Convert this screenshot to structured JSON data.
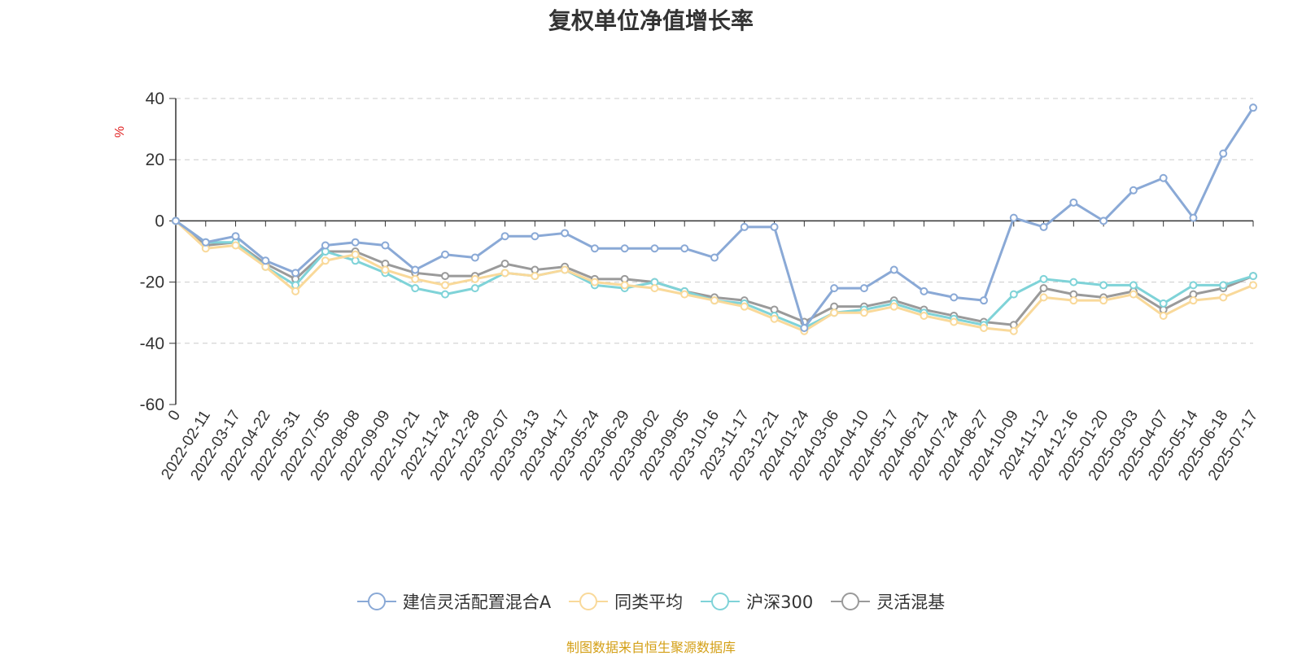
{
  "title": "复权单位净值增长率",
  "source": "制图数据来自恒生聚源数据库",
  "chart_data": {
    "type": "line",
    "ylabel": "%",
    "ylim": [
      -60,
      40
    ],
    "yticks": [
      40,
      20,
      0,
      -20,
      -40,
      -60
    ],
    "grid": true,
    "legend_position": "bottom",
    "x_tick_labels": [
      "0",
      "2022-02-11",
      "2022-03-17",
      "2022-04-22",
      "2022-05-31",
      "2022-07-05",
      "2022-08-08",
      "2022-09-09",
      "2022-10-21",
      "2022-11-24",
      "2022-12-28",
      "2023-02-07",
      "2023-03-13",
      "2023-04-17",
      "2023-05-24",
      "2023-06-29",
      "2023-08-02",
      "2023-09-05",
      "2023-10-16",
      "2023-11-17",
      "2023-12-21",
      "2024-01-24",
      "2024-03-06",
      "2024-04-10",
      "2024-05-17",
      "2024-06-21",
      "2024-07-24",
      "2024-08-27",
      "2024-10-09",
      "2024-11-12",
      "2024-12-16",
      "2025-01-20",
      "2025-03-03",
      "2025-04-07",
      "2025-05-14",
      "2025-06-18",
      "2025-07-17"
    ],
    "x": [
      "0",
      "2022-02-11",
      "2022-03-17",
      "2022-04-22",
      "2022-05-31",
      "2022-07-05",
      "2022-08-08",
      "2022-09-09",
      "2022-10-21",
      "2022-11-24",
      "2022-12-28",
      "2023-02-07",
      "2023-03-13",
      "2023-04-17",
      "2023-05-24",
      "2023-06-29",
      "2023-08-02",
      "2023-09-05",
      "2023-10-16",
      "2023-11-17",
      "2023-12-21",
      "2024-01-24",
      "2024-03-06",
      "2024-04-10",
      "2024-05-17",
      "2024-06-21",
      "2024-07-24",
      "2024-08-27",
      "2024-10-09",
      "2024-11-12",
      "2024-12-16",
      "2025-01-20",
      "2025-03-03",
      "2025-04-07",
      "2025-05-14",
      "2025-06-18",
      "2025-07-17"
    ],
    "series": [
      {
        "name": "建信灵活配置混合A",
        "color": "#8aa9d6",
        "values": [
          0,
          -7,
          -5,
          -13,
          -17,
          -8,
          -7,
          -8,
          -16,
          -11,
          -12,
          -5,
          -5,
          -4,
          -9,
          -9,
          -9,
          -9,
          -12,
          -2,
          -2,
          -35,
          -22,
          -22,
          -16,
          -23,
          -25,
          -26,
          1,
          -2,
          6,
          0,
          10,
          14,
          1,
          22,
          37
        ]
      },
      {
        "name": "同类平均",
        "color": "#f9d99a",
        "values": [
          0,
          -9,
          -8,
          -15,
          -23,
          -13,
          -11,
          -16,
          -19,
          -21,
          -19,
          -17,
          -18,
          -16,
          -20,
          -21,
          -22,
          -24,
          -26,
          -28,
          -32,
          -36,
          -30,
          -30,
          -28,
          -31,
          -33,
          -35,
          -36,
          -25,
          -26,
          -26,
          -24,
          -31,
          -26,
          -25,
          -21
        ]
      },
      {
        "name": "沪深300",
        "color": "#7fd3d8",
        "values": [
          0,
          -7,
          -7,
          -15,
          -21,
          -10,
          -13,
          -17,
          -22,
          -24,
          -22,
          -17,
          -18,
          -16,
          -21,
          -22,
          -20,
          -23,
          -26,
          -27,
          -31,
          -35,
          -30,
          -29,
          -27,
          -30,
          -32,
          -34,
          -24,
          -19,
          -20,
          -21,
          -21,
          -27,
          -21,
          -21,
          -18
        ]
      },
      {
        "name": "灵活混基",
        "color": "#9a9a9a",
        "values": [
          0,
          -8,
          -7,
          -14,
          -19,
          -10,
          -10,
          -14,
          -17,
          -18,
          -18,
          -14,
          -16,
          -15,
          -19,
          -19,
          -20,
          -23,
          -25,
          -26,
          -29,
          -33,
          -28,
          -28,
          -26,
          -29,
          -31,
          -33,
          -34,
          -22,
          -24,
          -25,
          -23,
          -29,
          -24,
          -22,
          -18
        ]
      }
    ]
  }
}
